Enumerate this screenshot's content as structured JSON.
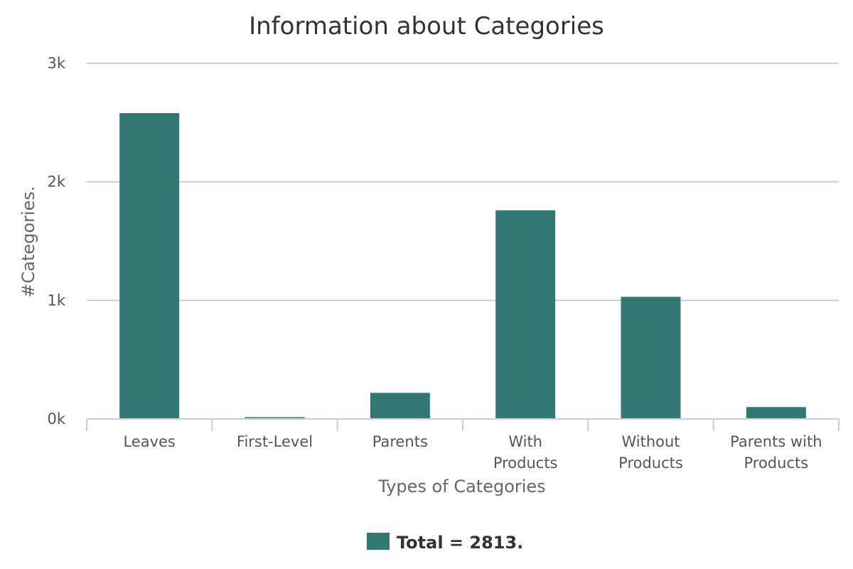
{
  "chart_data": {
    "type": "bar",
    "title": "Information about Categories",
    "xlabel": "Types of Categories",
    "ylabel": "#Categories.",
    "categories": [
      [
        "Leaves"
      ],
      [
        "First-Level"
      ],
      [
        "Parents"
      ],
      [
        "With",
        "Products"
      ],
      [
        "Without",
        "Products"
      ],
      [
        "Parents with",
        "Products"
      ]
    ],
    "series": [
      {
        "name": "Total = 2813.",
        "color": "#337775",
        "values": [
          2580,
          15,
          220,
          1760,
          1030,
          100
        ]
      }
    ],
    "ylim": [
      0,
      3000
    ],
    "yticks": [
      0,
      1000,
      2000,
      3000
    ],
    "ytick_labels": [
      "0k",
      "1k",
      "2k",
      "3k"
    ],
    "grid": true,
    "legend_position": "bottom-center"
  }
}
